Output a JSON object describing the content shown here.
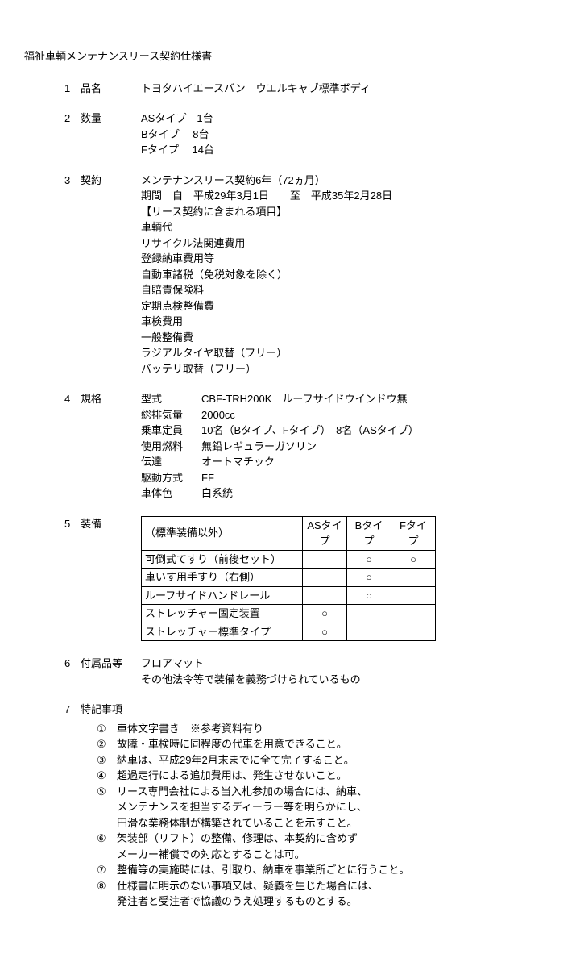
{
  "title": "福祉車輌メンテナンスリース契約仕様書",
  "sections": {
    "s1": {
      "num": "1",
      "label": "品名",
      "value": "トヨタハイエースバン　ウエルキャブ標準ボディ"
    },
    "s2": {
      "num": "2",
      "label": "数量",
      "lines": [
        "ASタイプ　1台",
        "Bタイプ　  8台",
        "Fタイプ　 14台"
      ]
    },
    "s3": {
      "num": "3",
      "label": "契約",
      "lines": [
        "メンテナンスリース契約6年（72ヵ月）",
        "期間　自　平成29年3月1日　　至　平成35年2月28日",
        "【リース契約に含まれる項目】",
        "車輌代",
        "リサイクル法関連費用",
        "登録納車費用等",
        "自動車諸税（免税対象を除く）",
        "自賠責保険料",
        "定期点検整備費",
        "車検費用",
        "一般整備費",
        "ラジアルタイヤ取替（フリー）",
        "バッテリ取替（フリー）"
      ]
    },
    "s4": {
      "num": "4",
      "label": "規格",
      "rows": [
        {
          "label": "型式",
          "value": "CBF-TRH200K　ルーフサイドウインドウ無"
        },
        {
          "label": "総排気量",
          "value": "2000cc"
        },
        {
          "label": "乗車定員",
          "value": "10名（Bタイプ、Fタイプ）　8名（ASタイプ）"
        },
        {
          "label": "使用燃料",
          "value": "無鉛レギュラーガソリン"
        },
        {
          "label": "伝達",
          "value": "オートマチック"
        },
        {
          "label": "駆動方式",
          "value": "FF"
        },
        {
          "label": "車体色",
          "value": "白系統"
        }
      ]
    },
    "s5": {
      "num": "5",
      "label": "装備",
      "table": {
        "header": [
          "（標準装備以外）",
          "ASタイプ",
          "Bタイプ",
          "Fタイプ"
        ],
        "rows": [
          {
            "name": "可倒式てすり（前後セット）",
            "as": "",
            "b": "○",
            "f": "○"
          },
          {
            "name": "車いす用手すり（右側）",
            "as": "",
            "b": "○",
            "f": ""
          },
          {
            "name": "ルーフサイドハンドレール",
            "as": "",
            "b": "○",
            "f": ""
          },
          {
            "name": "ストレッチャー固定装置",
            "as": "○",
            "b": "",
            "f": ""
          },
          {
            "name": "ストレッチャー標準タイプ",
            "as": "○",
            "b": "",
            "f": ""
          }
        ]
      }
    },
    "s6": {
      "num": "6",
      "label": "付属品等",
      "lines": [
        "フロアマット",
        "その他法令等で装備を義務づけられているもの"
      ]
    },
    "s7": {
      "num": "7",
      "label": "特記事項",
      "notes": [
        {
          "n": "①",
          "t": [
            "車体文字書き　※参考資料有り"
          ]
        },
        {
          "n": "②",
          "t": [
            "故障・車検時に同程度の代車を用意できること。"
          ]
        },
        {
          "n": "③",
          "t": [
            "納車は、平成29年2月末までに全て完了すること。"
          ]
        },
        {
          "n": "④",
          "t": [
            "超過走行による追加費用は、発生させないこと。"
          ]
        },
        {
          "n": "⑤",
          "t": [
            "リース専門会社による当入札参加の場合には、納車、",
            "メンテナンスを担当するディーラー等を明らかにし、",
            "円滑な業務体制が構築されていることを示すこと。"
          ]
        },
        {
          "n": "⑥",
          "t": [
            "架装部（リフト）の整備、修理は、本契約に含めず",
            "メーカー補償での対応とすることは可。"
          ]
        },
        {
          "n": "⑦",
          "t": [
            "整備等の実施時には、引取り、納車を事業所ごとに行うこと。"
          ]
        },
        {
          "n": "⑧",
          "t": [
            "仕様書に明示のない事項又は、疑義を生じた場合には、",
            "発注者と受注者で協議のうえ処理するものとする。"
          ]
        }
      ]
    }
  }
}
